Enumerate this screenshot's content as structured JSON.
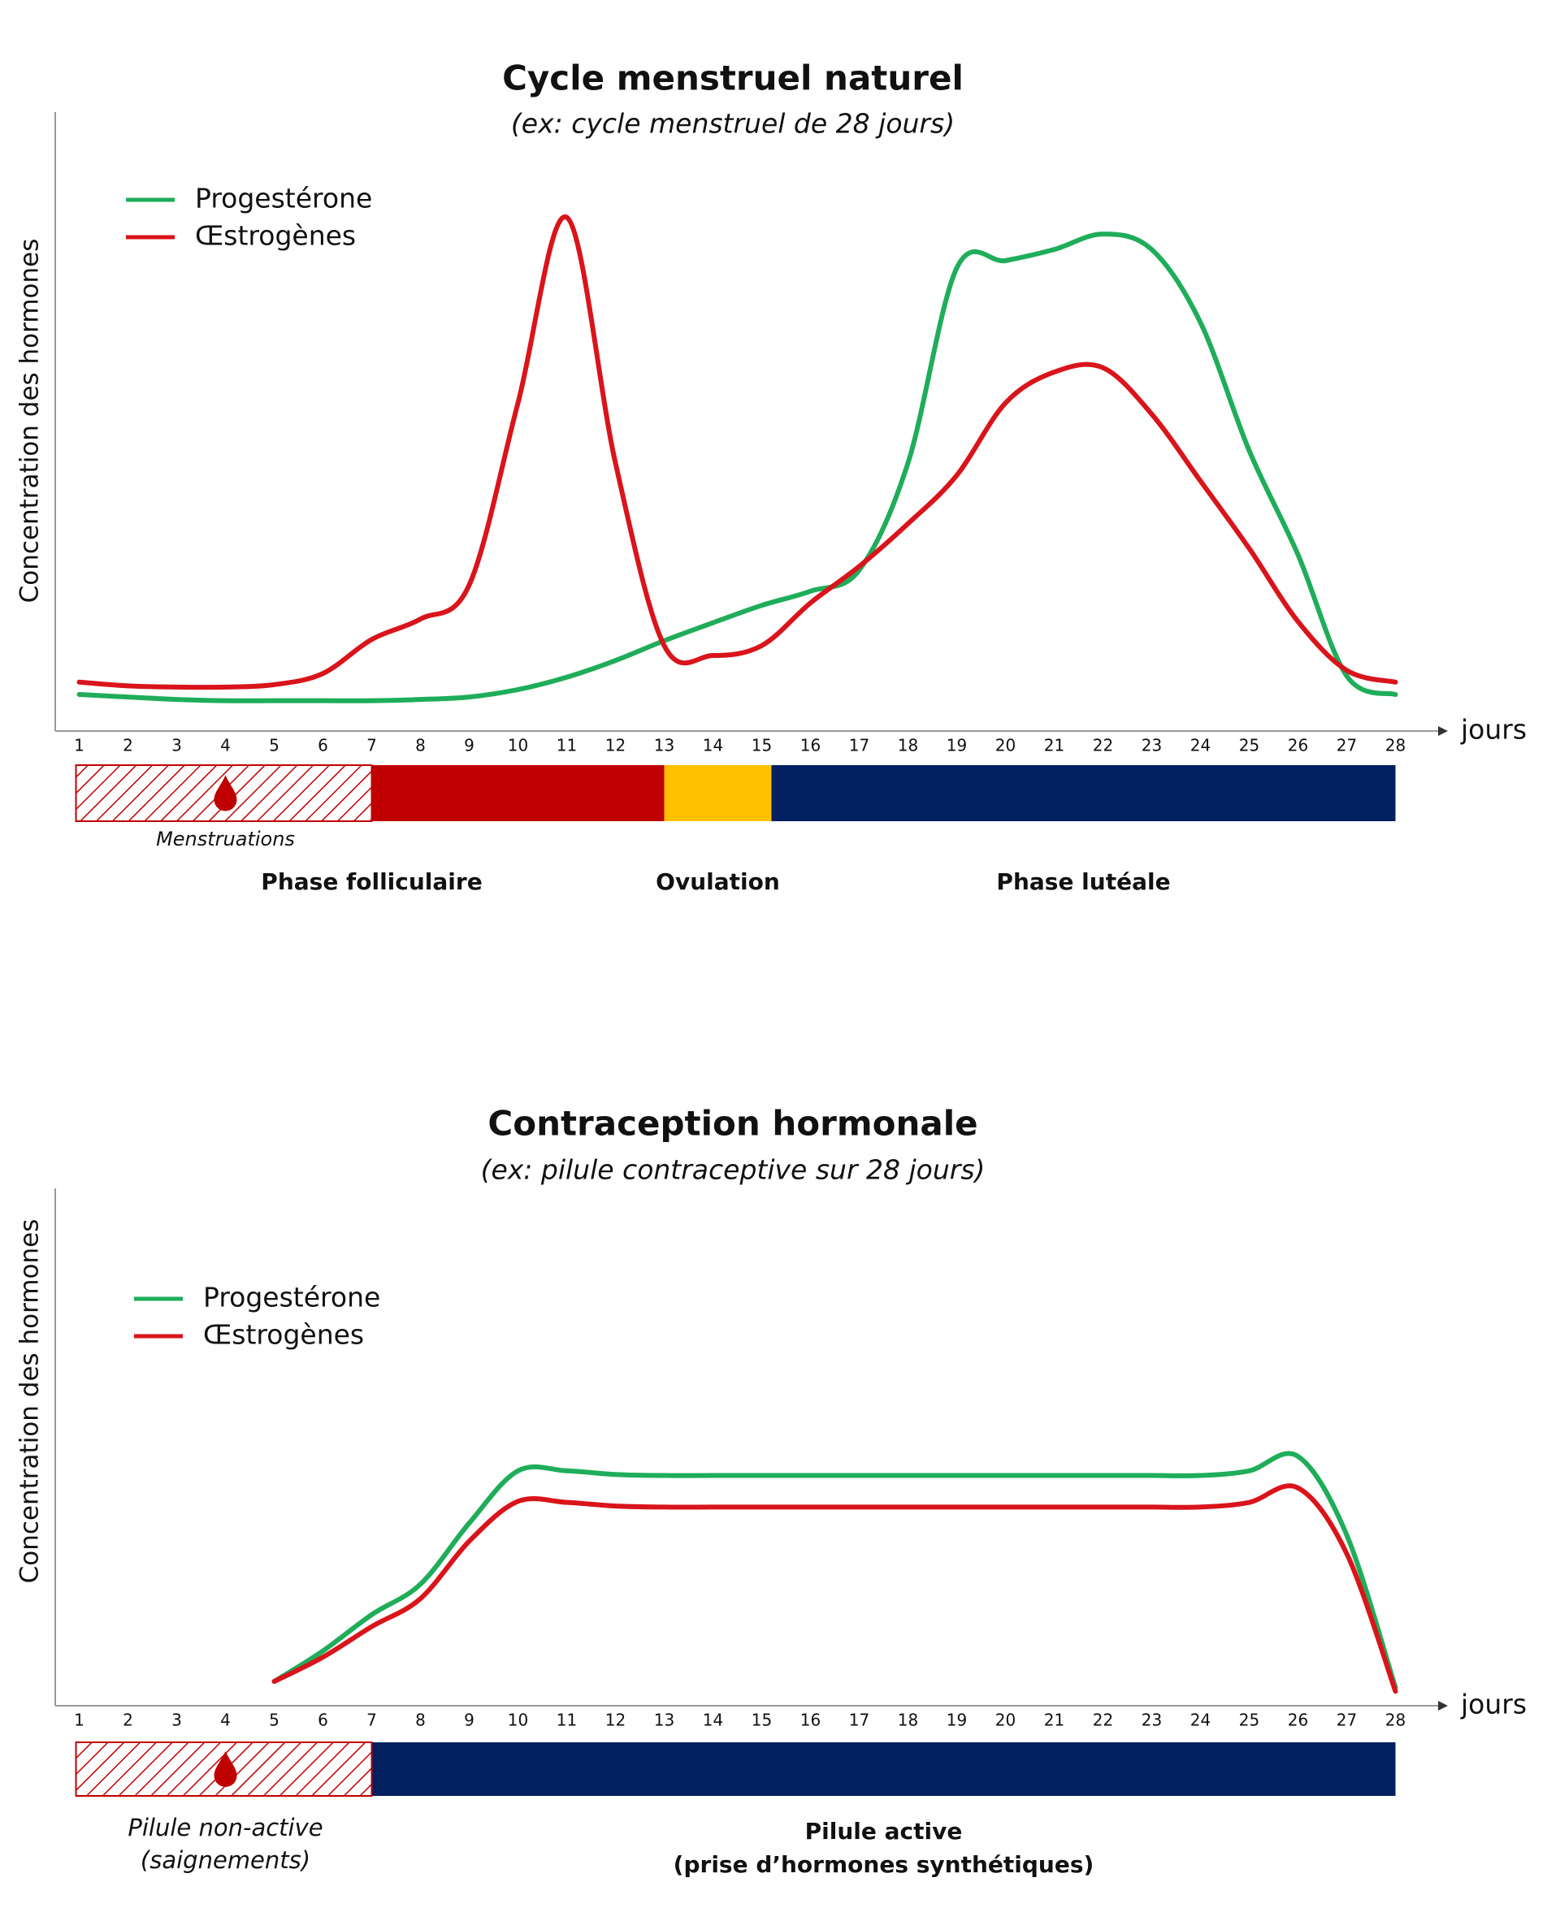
{
  "chart_data": [
    {
      "type": "line",
      "title": "Cycle menstruel naturel",
      "subtitle": "(ex: cycle menstruel de 28 jours)",
      "ylabel": "Concentration des hormones",
      "xlabel": "jours",
      "x": [
        1,
        2,
        3,
        4,
        5,
        6,
        7,
        8,
        9,
        10,
        11,
        12,
        13,
        14,
        15,
        16,
        17,
        18,
        19,
        20,
        21,
        22,
        23,
        24,
        25,
        26,
        27,
        28
      ],
      "xlim": [
        1,
        28
      ],
      "ylim": [
        0,
        100
      ],
      "series": [
        {
          "name": "Progestérone",
          "color": "#1fad5a",
          "values": [
            5.9,
            5.5,
            5.1,
            4.9,
            4.9,
            4.9,
            4.9,
            5.1,
            5.5,
            6.7,
            8.7,
            11.4,
            14.6,
            17.5,
            20.3,
            22.6,
            26,
            43.3,
            74.8,
            76,
            77.8,
            80.3,
            77.8,
            66,
            45.3,
            28.5,
            8.9,
            5.9
          ]
        },
        {
          "name": "Œstrogènes",
          "color": "#d9141b",
          "values": [
            7.9,
            7.3,
            7.1,
            7.1,
            7.5,
            9.3,
            14.8,
            18.1,
            23.6,
            53,
            83,
            43.3,
            13.8,
            12.2,
            13.8,
            20.7,
            26.6,
            33.5,
            41.3,
            53,
            58,
            58.7,
            51.2,
            40.4,
            29.5,
            17.7,
            9.8,
            7.9
          ]
        }
      ],
      "bleeding": {
        "name": [
          "Menstruations"
        ],
        "start": 1,
        "end": 7,
        "color": "#c00000"
      },
      "phases": [
        {
          "name": [
            "Phase folliculaire"
          ],
          "start": 1,
          "end": 13,
          "color": "#c00000"
        },
        {
          "name": [
            "Ovulation"
          ],
          "start": 13,
          "end": 15.2,
          "color": "#ffc000"
        },
        {
          "name": [
            "Phase lutéale"
          ],
          "start": 15.2,
          "end": 28,
          "color": "#002060"
        }
      ]
    },
    {
      "type": "line",
      "title": "Contraception hormonale",
      "subtitle": "(ex: pilule contraceptive sur 28 jours)",
      "ylabel": "Concentration des hormones",
      "xlabel": "jours",
      "x": [
        1,
        2,
        3,
        4,
        5,
        6,
        7,
        8,
        9,
        10,
        11,
        12,
        13,
        14,
        15,
        16,
        17,
        18,
        19,
        20,
        21,
        22,
        23,
        24,
        25,
        26,
        27,
        28
      ],
      "xlim": [
        1,
        28
      ],
      "ylim": [
        0,
        100
      ],
      "series": [
        {
          "name": "Progestérone",
          "color": "#1fad5a",
          "values": [
            null,
            null,
            null,
            null,
            4.7,
            10.6,
            17.6,
            23.5,
            35.3,
            45.4,
            45.4,
            44.7,
            44.5,
            44.5,
            44.5,
            44.5,
            44.5,
            44.5,
            44.5,
            44.5,
            44.5,
            44.5,
            44.5,
            44.5,
            45.4,
            48.2,
            33,
            3.5
          ]
        },
        {
          "name": "Œstrogènes",
          "color": "#d9141b",
          "values": [
            null,
            null,
            null,
            null,
            4.7,
            9.4,
            15.3,
            20.7,
            31.8,
            39.5,
            39.3,
            38.6,
            38.4,
            38.4,
            38.4,
            38.4,
            38.4,
            38.4,
            38.4,
            38.4,
            38.4,
            38.4,
            38.4,
            38.4,
            39.3,
            42.1,
            29.4,
            2.8
          ]
        }
      ],
      "bleeding": {
        "name": [
          "Pilule non-active",
          "(saignements)"
        ],
        "start": 1,
        "end": 7,
        "color": "#c00000"
      },
      "phases": [
        {
          "name": [
            "Pilule active",
            "(prise d’hormones synthétiques)"
          ],
          "start": 7,
          "end": 28,
          "color": "#002060"
        }
      ]
    }
  ]
}
